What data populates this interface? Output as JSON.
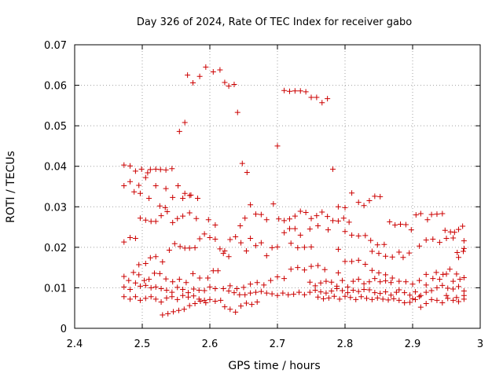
{
  "chart_data": {
    "type": "scatter",
    "title": "Day 326 of 2024, Rate Of TEC Index for receiver gabo",
    "xlabel": "GPS time / hours",
    "ylabel": "ROTI / TECUs",
    "xlim": [
      2.4,
      3.0
    ],
    "ylim": [
      0,
      0.07
    ],
    "xticks": [
      "2.4",
      "2.5",
      "2.6",
      "2.7",
      "2.8",
      "2.9",
      "3"
    ],
    "yticks": [
      "0",
      "0.01",
      "0.02",
      "0.03",
      "0.04",
      "0.05",
      "0.06",
      "0.07"
    ],
    "grid": true,
    "marker": "+",
    "color": "#cc0000",
    "points": [
      [
        2.473,
        0.0403
      ],
      [
        2.482,
        0.0401
      ],
      [
        2.49,
        0.0388
      ],
      [
        2.499,
        0.0393
      ],
      [
        2.508,
        0.0384
      ],
      [
        2.512,
        0.0392
      ],
      [
        2.52,
        0.0393
      ],
      [
        2.527,
        0.0392
      ],
      [
        2.535,
        0.0391
      ],
      [
        2.544,
        0.0394
      ],
      [
        2.473,
        0.0352
      ],
      [
        2.482,
        0.0362
      ],
      [
        2.495,
        0.0353
      ],
      [
        2.505,
        0.0372
      ],
      [
        2.52,
        0.0352
      ],
      [
        2.535,
        0.0345
      ],
      [
        2.545,
        0.0323
      ],
      [
        2.553,
        0.0352
      ],
      [
        2.563,
        0.0333
      ],
      [
        2.572,
        0.0329
      ],
      [
        2.582,
        0.0321
      ],
      [
        2.488,
        0.0337
      ],
      [
        2.497,
        0.0333
      ],
      [
        2.51,
        0.0321
      ],
      [
        2.526,
        0.0302
      ],
      [
        2.534,
        0.0298
      ],
      [
        2.56,
        0.0321
      ],
      [
        2.57,
        0.0328
      ],
      [
        2.555,
        0.0486
      ],
      [
        2.563,
        0.0508
      ],
      [
        2.567,
        0.0625
      ],
      [
        2.575,
        0.0606
      ],
      [
        2.585,
        0.0622
      ],
      [
        2.594,
        0.0645
      ],
      [
        2.605,
        0.0633
      ],
      [
        2.615,
        0.0638
      ],
      [
        2.622,
        0.0607
      ],
      [
        2.628,
        0.0598
      ],
      [
        2.636,
        0.0602
      ],
      [
        2.641,
        0.0533
      ],
      [
        2.648,
        0.0407
      ],
      [
        2.655,
        0.0385
      ],
      [
        2.7,
        0.045
      ],
      [
        2.71,
        0.0587
      ],
      [
        2.718,
        0.0585
      ],
      [
        2.726,
        0.0586
      ],
      [
        2.734,
        0.0586
      ],
      [
        2.742,
        0.0584
      ],
      [
        2.75,
        0.057
      ],
      [
        2.758,
        0.057
      ],
      [
        2.766,
        0.0557
      ],
      [
        2.774,
        0.0567
      ],
      [
        2.782,
        0.0393
      ],
      [
        2.473,
        0.0213
      ],
      [
        2.482,
        0.0224
      ],
      [
        2.49,
        0.0222
      ],
      [
        2.497,
        0.0272
      ],
      [
        2.505,
        0.0267
      ],
      [
        2.513,
        0.0264
      ],
      [
        2.52,
        0.0264
      ],
      [
        2.528,
        0.0278
      ],
      [
        2.537,
        0.0288
      ],
      [
        2.545,
        0.0261
      ],
      [
        2.552,
        0.0271
      ],
      [
        2.56,
        0.0277
      ],
      [
        2.57,
        0.0285
      ],
      [
        2.58,
        0.0271
      ],
      [
        2.495,
        0.0157
      ],
      [
        2.505,
        0.016
      ],
      [
        2.512,
        0.0174
      ],
      [
        2.52,
        0.0177
      ],
      [
        2.53,
        0.0164
      ],
      [
        2.54,
        0.0193
      ],
      [
        2.548,
        0.0209
      ],
      [
        2.556,
        0.0202
      ],
      [
        2.563,
        0.0198
      ],
      [
        2.57,
        0.0198
      ],
      [
        2.578,
        0.0199
      ],
      [
        2.585,
        0.0221
      ],
      [
        2.592,
        0.0233
      ],
      [
        2.6,
        0.0224
      ],
      [
        2.608,
        0.022
      ],
      [
        2.615,
        0.0196
      ],
      [
        2.622,
        0.0191
      ],
      [
        2.63,
        0.0219
      ],
      [
        2.638,
        0.0226
      ],
      [
        2.646,
        0.0211
      ],
      [
        2.654,
        0.0191
      ],
      [
        2.66,
        0.0222
      ],
      [
        2.668,
        0.0204
      ],
      [
        2.676,
        0.0211
      ],
      [
        2.684,
        0.0179
      ],
      [
        2.692,
        0.0199
      ],
      [
        2.7,
        0.0201
      ],
      [
        2.598,
        0.0268
      ],
      [
        2.608,
        0.0255
      ],
      [
        2.62,
        0.0185
      ],
      [
        2.628,
        0.0177
      ],
      [
        2.645,
        0.0253
      ],
      [
        2.652,
        0.0272
      ],
      [
        2.66,
        0.0305
      ],
      [
        2.668,
        0.0282
      ],
      [
        2.676,
        0.0281
      ],
      [
        2.684,
        0.0268
      ],
      [
        2.694,
        0.0307
      ],
      [
        2.702,
        0.027
      ],
      [
        2.71,
        0.0266
      ],
      [
        2.718,
        0.027
      ],
      [
        2.726,
        0.0277
      ],
      [
        2.734,
        0.0289
      ],
      [
        2.742,
        0.0286
      ],
      [
        2.75,
        0.0271
      ],
      [
        2.758,
        0.0278
      ],
      [
        2.766,
        0.0287
      ],
      [
        2.774,
        0.0276
      ],
      [
        2.782,
        0.0266
      ],
      [
        2.79,
        0.0265
      ],
      [
        2.798,
        0.0272
      ],
      [
        2.806,
        0.0262
      ],
      [
        2.71,
        0.0236
      ],
      [
        2.718,
        0.0246
      ],
      [
        2.726,
        0.0246
      ],
      [
        2.734,
        0.023
      ],
      [
        2.748,
        0.0245
      ],
      [
        2.76,
        0.0253
      ],
      [
        2.775,
        0.0243
      ],
      [
        2.79,
        0.03
      ],
      [
        2.8,
        0.0298
      ],
      [
        2.81,
        0.0334
      ],
      [
        2.82,
        0.0311
      ],
      [
        2.828,
        0.0303
      ],
      [
        2.836,
        0.0315
      ],
      [
        2.844,
        0.0326
      ],
      [
        2.852,
        0.0325
      ],
      [
        2.72,
        0.021
      ],
      [
        2.73,
        0.0199
      ],
      [
        2.74,
        0.02
      ],
      [
        2.75,
        0.0201
      ],
      [
        2.79,
        0.0195
      ],
      [
        2.8,
        0.0239
      ],
      [
        2.81,
        0.023
      ],
      [
        2.82,
        0.0228
      ],
      [
        2.83,
        0.0229
      ],
      [
        2.838,
        0.0217
      ],
      [
        2.848,
        0.0206
      ],
      [
        2.858,
        0.0207
      ],
      [
        2.866,
        0.0263
      ],
      [
        2.874,
        0.0255
      ],
      [
        2.882,
        0.0257
      ],
      [
        2.89,
        0.0256
      ],
      [
        2.898,
        0.0243
      ],
      [
        2.84,
        0.019
      ],
      [
        2.85,
        0.0185
      ],
      [
        2.86,
        0.0178
      ],
      [
        2.87,
        0.0176
      ],
      [
        2.88,
        0.0188
      ],
      [
        2.886,
        0.0175
      ],
      [
        2.895,
        0.0186
      ],
      [
        2.905,
        0.028
      ],
      [
        2.912,
        0.0283
      ],
      [
        2.922,
        0.0268
      ],
      [
        2.928,
        0.0281
      ],
      [
        2.936,
        0.0282
      ],
      [
        2.944,
        0.0283
      ],
      [
        2.948,
        0.0242
      ],
      [
        2.956,
        0.0238
      ],
      [
        2.962,
        0.0237
      ],
      [
        2.968,
        0.0244
      ],
      [
        2.974,
        0.0252
      ],
      [
        2.91,
        0.0203
      ],
      [
        2.92,
        0.0218
      ],
      [
        2.93,
        0.022
      ],
      [
        2.94,
        0.0212
      ],
      [
        2.95,
        0.0222
      ],
      [
        2.96,
        0.0223
      ],
      [
        2.966,
        0.0187
      ],
      [
        2.976,
        0.0216
      ],
      [
        2.976,
        0.0197
      ],
      [
        2.975,
        0.019
      ],
      [
        2.968,
        0.0175
      ],
      [
        2.473,
        0.0128
      ],
      [
        2.48,
        0.0118
      ],
      [
        2.487,
        0.0138
      ],
      [
        2.495,
        0.0132
      ],
      [
        2.503,
        0.0118
      ],
      [
        2.51,
        0.0121
      ],
      [
        2.518,
        0.0136
      ],
      [
        2.526,
        0.0135
      ],
      [
        2.535,
        0.0122
      ],
      [
        2.545,
        0.0115
      ],
      [
        2.555,
        0.0121
      ],
      [
        2.565,
        0.0113
      ],
      [
        2.575,
        0.0135
      ],
      [
        2.585,
        0.0124
      ],
      [
        2.597,
        0.0124
      ],
      [
        2.605,
        0.0142
      ],
      [
        2.612,
        0.0142
      ],
      [
        2.473,
        0.0102
      ],
      [
        2.482,
        0.0096
      ],
      [
        2.49,
        0.0112
      ],
      [
        2.497,
        0.0104
      ],
      [
        2.505,
        0.0106
      ],
      [
        2.513,
        0.01
      ],
      [
        2.52,
        0.0102
      ],
      [
        2.528,
        0.0098
      ],
      [
        2.536,
        0.0094
      ],
      [
        2.544,
        0.0089
      ],
      [
        2.552,
        0.0101
      ],
      [
        2.56,
        0.0096
      ],
      [
        2.568,
        0.0088
      ],
      [
        2.576,
        0.0097
      ],
      [
        2.584,
        0.0094
      ],
      [
        2.592,
        0.0093
      ],
      [
        2.6,
        0.0102
      ],
      [
        2.608,
        0.0098
      ],
      [
        2.473,
        0.0078
      ],
      [
        2.482,
        0.0072
      ],
      [
        2.49,
        0.0078
      ],
      [
        2.497,
        0.0069
      ],
      [
        2.505,
        0.0074
      ],
      [
        2.513,
        0.0078
      ],
      [
        2.52,
        0.0072
      ],
      [
        2.528,
        0.0065
      ],
      [
        2.536,
        0.0075
      ],
      [
        2.544,
        0.0078
      ],
      [
        2.552,
        0.0071
      ],
      [
        2.56,
        0.0081
      ],
      [
        2.568,
        0.0077
      ],
      [
        2.576,
        0.008
      ],
      [
        2.584,
        0.0072
      ],
      [
        2.592,
        0.0069
      ],
      [
        2.6,
        0.0071
      ],
      [
        2.608,
        0.0067
      ],
      [
        2.616,
        0.0069
      ],
      [
        2.53,
        0.0033
      ],
      [
        2.538,
        0.0036
      ],
      [
        2.546,
        0.0041
      ],
      [
        2.554,
        0.0044
      ],
      [
        2.562,
        0.0047
      ],
      [
        2.57,
        0.0056
      ],
      [
        2.578,
        0.0061
      ],
      [
        2.586,
        0.0067
      ],
      [
        2.594,
        0.0063
      ],
      [
        2.622,
        0.0053
      ],
      [
        2.63,
        0.0047
      ],
      [
        2.638,
        0.004
      ],
      [
        2.646,
        0.0055
      ],
      [
        2.654,
        0.0062
      ],
      [
        2.662,
        0.0059
      ],
      [
        2.67,
        0.0065
      ],
      [
        2.62,
        0.0098
      ],
      [
        2.628,
        0.0092
      ],
      [
        2.636,
        0.0088
      ],
      [
        2.644,
        0.0083
      ],
      [
        2.652,
        0.0083
      ],
      [
        2.66,
        0.0087
      ],
      [
        2.668,
        0.0089
      ],
      [
        2.676,
        0.0091
      ],
      [
        2.684,
        0.0087
      ],
      [
        2.692,
        0.0085
      ],
      [
        2.7,
        0.0081
      ],
      [
        2.708,
        0.0087
      ],
      [
        2.716,
        0.0083
      ],
      [
        2.724,
        0.0084
      ],
      [
        2.732,
        0.0089
      ],
      [
        2.74,
        0.0083
      ],
      [
        2.63,
        0.0105
      ],
      [
        2.64,
        0.0098
      ],
      [
        2.65,
        0.0101
      ],
      [
        2.66,
        0.0109
      ],
      [
        2.67,
        0.0113
      ],
      [
        2.68,
        0.0107
      ],
      [
        2.69,
        0.0118
      ],
      [
        2.7,
        0.0127
      ],
      [
        2.71,
        0.0123
      ],
      [
        2.72,
        0.0146
      ],
      [
        2.73,
        0.015
      ],
      [
        2.74,
        0.0144
      ],
      [
        2.75,
        0.0153
      ],
      [
        2.76,
        0.0155
      ],
      [
        2.77,
        0.0145
      ],
      [
        2.748,
        0.0114
      ],
      [
        2.756,
        0.0105
      ],
      [
        2.764,
        0.0112
      ],
      [
        2.772,
        0.0116
      ],
      [
        2.78,
        0.0114
      ],
      [
        2.788,
        0.0104
      ],
      [
        2.796,
        0.0118
      ],
      [
        2.804,
        0.0102
      ],
      [
        2.812,
        0.0116
      ],
      [
        2.82,
        0.0121
      ],
      [
        2.828,
        0.011
      ],
      [
        2.836,
        0.0115
      ],
      [
        2.844,
        0.0123
      ],
      [
        2.852,
        0.0115
      ],
      [
        2.86,
        0.0117
      ],
      [
        2.868,
        0.0113
      ],
      [
        2.748,
        0.0089
      ],
      [
        2.756,
        0.0094
      ],
      [
        2.764,
        0.009
      ],
      [
        2.772,
        0.0087
      ],
      [
        2.78,
        0.0092
      ],
      [
        2.788,
        0.0098
      ],
      [
        2.796,
        0.0093
      ],
      [
        2.804,
        0.0088
      ],
      [
        2.812,
        0.0094
      ],
      [
        2.82,
        0.0091
      ],
      [
        2.828,
        0.0096
      ],
      [
        2.836,
        0.0095
      ],
      [
        2.844,
        0.0088
      ],
      [
        2.852,
        0.0086
      ],
      [
        2.86,
        0.009
      ],
      [
        2.868,
        0.0082
      ],
      [
        2.876,
        0.0089
      ],
      [
        2.76,
        0.0077
      ],
      [
        2.768,
        0.0073
      ],
      [
        2.776,
        0.0075
      ],
      [
        2.784,
        0.0079
      ],
      [
        2.792,
        0.0072
      ],
      [
        2.8,
        0.0079
      ],
      [
        2.808,
        0.0076
      ],
      [
        2.816,
        0.0071
      ],
      [
        2.824,
        0.0078
      ],
      [
        2.832,
        0.0074
      ],
      [
        2.84,
        0.0071
      ],
      [
        2.848,
        0.0075
      ],
      [
        2.856,
        0.0072
      ],
      [
        2.864,
        0.007
      ],
      [
        2.872,
        0.0073
      ],
      [
        2.79,
        0.0137
      ],
      [
        2.8,
        0.0165
      ],
      [
        2.81,
        0.0165
      ],
      [
        2.82,
        0.0168
      ],
      [
        2.83,
        0.0158
      ],
      [
        2.84,
        0.0143
      ],
      [
        2.85,
        0.0137
      ],
      [
        2.86,
        0.0132
      ],
      [
        2.87,
        0.0124
      ],
      [
        2.88,
        0.0116
      ],
      [
        2.89,
        0.0115
      ],
      [
        2.9,
        0.0109
      ],
      [
        2.91,
        0.0118
      ],
      [
        2.92,
        0.0133
      ],
      [
        2.93,
        0.0123
      ],
      [
        2.94,
        0.0121
      ],
      [
        2.95,
        0.0134
      ],
      [
        2.96,
        0.0116
      ],
      [
        2.97,
        0.0121
      ],
      [
        2.976,
        0.0125
      ],
      [
        2.88,
        0.0095
      ],
      [
        2.888,
        0.0088
      ],
      [
        2.896,
        0.0082
      ],
      [
        2.904,
        0.009
      ],
      [
        2.912,
        0.0081
      ],
      [
        2.92,
        0.0089
      ],
      [
        2.928,
        0.0093
      ],
      [
        2.936,
        0.01
      ],
      [
        2.944,
        0.0106
      ],
      [
        2.952,
        0.0099
      ],
      [
        2.96,
        0.0097
      ],
      [
        2.968,
        0.0103
      ],
      [
        2.976,
        0.0092
      ],
      [
        2.88,
        0.0069
      ],
      [
        2.888,
        0.0063
      ],
      [
        2.896,
        0.0064
      ],
      [
        2.904,
        0.0071
      ],
      [
        2.912,
        0.0052
      ],
      [
        2.92,
        0.0061
      ],
      [
        2.928,
        0.0071
      ],
      [
        2.936,
        0.0069
      ],
      [
        2.944,
        0.0063
      ],
      [
        2.952,
        0.0074
      ],
      [
        2.96,
        0.0069
      ],
      [
        2.968,
        0.0066
      ],
      [
        2.976,
        0.0072
      ],
      [
        2.976,
        0.0081
      ],
      [
        2.9,
        0.0073
      ],
      [
        2.91,
        0.0078
      ],
      [
        2.95,
        0.0081
      ],
      [
        2.965,
        0.0076
      ],
      [
        2.92,
        0.0107
      ],
      [
        2.935,
        0.0138
      ],
      [
        2.945,
        0.0133
      ],
      [
        2.955,
        0.0146
      ],
      [
        2.965,
        0.0134
      ]
    ]
  }
}
